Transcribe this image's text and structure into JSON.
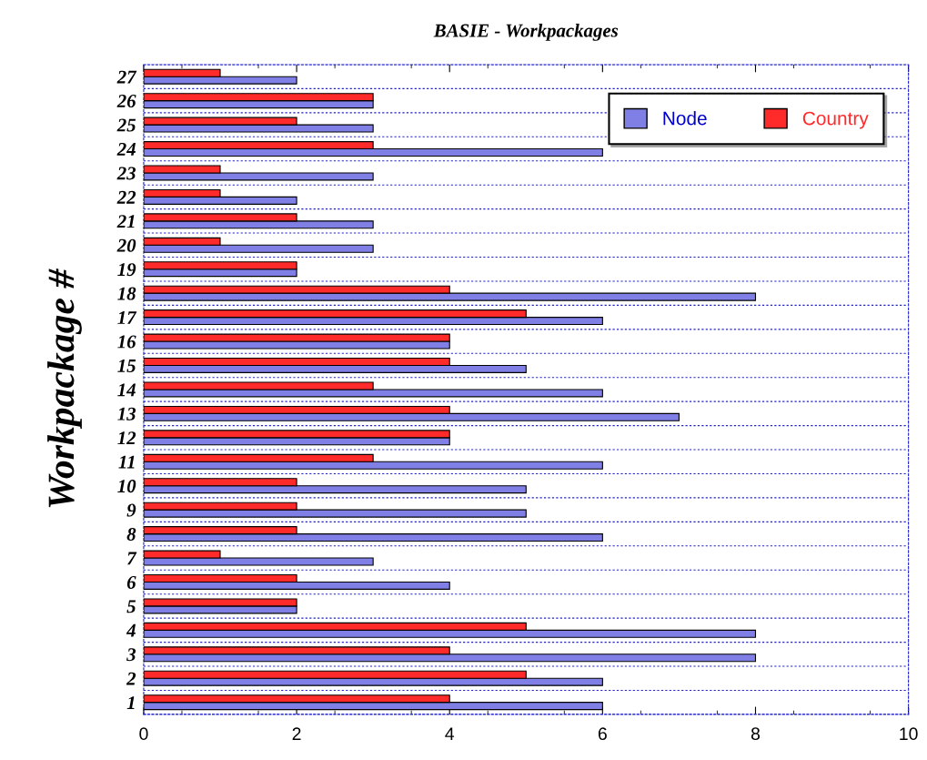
{
  "chart_data": {
    "type": "bar",
    "orientation": "horizontal",
    "title": "BASIE - Workpackages",
    "ylabel": "Workpackage #",
    "categories": [
      "27",
      "26",
      "25",
      "24",
      "23",
      "22",
      "21",
      "20",
      "19",
      "18",
      "17",
      "16",
      "15",
      "14",
      "13",
      "12",
      "11",
      "10",
      "9",
      "8",
      "7",
      "6",
      "5",
      "4",
      "3",
      "2",
      "1"
    ],
    "series": [
      {
        "name": "Node",
        "color": "#7f7fe6",
        "values": [
          2,
          3,
          3,
          6,
          3,
          2,
          3,
          3,
          2,
          8,
          6,
          4,
          5,
          6,
          7,
          4,
          6,
          5,
          5,
          6,
          3,
          4,
          2,
          8,
          8,
          6,
          6
        ]
      },
      {
        "name": "Country",
        "color": "#ff2a2a",
        "values": [
          1,
          3,
          2,
          3,
          1,
          1,
          2,
          1,
          2,
          4,
          5,
          4,
          4,
          3,
          4,
          4,
          3,
          2,
          2,
          2,
          1,
          2,
          2,
          5,
          4,
          5,
          4
        ]
      }
    ],
    "xlim": [
      0,
      10
    ],
    "xticks": [
      0,
      2,
      4,
      6,
      8,
      10
    ],
    "grid": "y",
    "legend": "top right"
  }
}
